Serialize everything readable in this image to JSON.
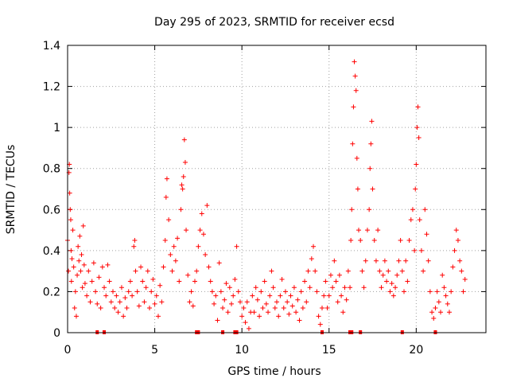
{
  "chart_data": {
    "type": "scatter",
    "title": "Day 295 of 2023, SRMTID for receiver ecsd",
    "xlabel": "GPS time / hours",
    "ylabel": "SRMTID / TECUs",
    "xlim": [
      0,
      24
    ],
    "ylim": [
      0,
      1.4
    ],
    "xticks": [
      0,
      5,
      10,
      15,
      20
    ],
    "yticks": [
      0,
      0.2,
      0.4,
      0.6,
      0.8,
      1,
      1.2,
      1.4
    ],
    "xtick_labels": [
      "0",
      "5",
      "10",
      "15",
      "20"
    ],
    "ytick_labels": [
      "0",
      "0.2",
      "0.4",
      "0.6",
      "0.8",
      "1",
      "1.2",
      "1.4"
    ],
    "grid": true,
    "marker": "plus",
    "series_color": "#ff0000",
    "baseline_markers_x": [
      1.7,
      2.1,
      7.4,
      7.5,
      8.9,
      9.6,
      9.7,
      14.6,
      16.2,
      16.3,
      16.8,
      19.2,
      21.1
    ],
    "series": [
      {
        "name": "SRMTID",
        "points": [
          [
            0.0,
            0.45
          ],
          [
            0.05,
            0.3
          ],
          [
            0.08,
            0.78
          ],
          [
            0.1,
            0.82
          ],
          [
            0.12,
            0.68
          ],
          [
            0.15,
            0.6
          ],
          [
            0.18,
            0.55
          ],
          [
            0.2,
            0.4
          ],
          [
            0.22,
            0.25
          ],
          [
            0.25,
            0.36
          ],
          [
            0.3,
            0.5
          ],
          [
            0.35,
            0.32
          ],
          [
            0.4,
            0.12
          ],
          [
            0.45,
            0.2
          ],
          [
            0.5,
            0.08
          ],
          [
            0.55,
            0.28
          ],
          [
            0.6,
            0.42
          ],
          [
            0.65,
            0.35
          ],
          [
            0.7,
            0.47
          ],
          [
            0.75,
            0.3
          ],
          [
            0.8,
            0.38
          ],
          [
            0.85,
            0.22
          ],
          [
            0.9,
            0.52
          ],
          [
            0.95,
            0.33
          ],
          [
            1.0,
            0.24
          ],
          [
            1.1,
            0.18
          ],
          [
            1.2,
            0.3
          ],
          [
            1.3,
            0.15
          ],
          [
            1.4,
            0.25
          ],
          [
            1.5,
            0.34
          ],
          [
            1.6,
            0.2
          ],
          [
            1.7,
            0.14
          ],
          [
            1.8,
            0.27
          ],
          [
            1.9,
            0.12
          ],
          [
            2.0,
            0.32
          ],
          [
            2.1,
            0.22
          ],
          [
            2.2,
            0.18
          ],
          [
            2.3,
            0.33
          ],
          [
            2.4,
            0.25
          ],
          [
            2.5,
            0.15
          ],
          [
            2.6,
            0.2
          ],
          [
            2.7,
            0.12
          ],
          [
            2.8,
            0.18
          ],
          [
            2.9,
            0.1
          ],
          [
            3.0,
            0.15
          ],
          [
            3.1,
            0.22
          ],
          [
            3.2,
            0.08
          ],
          [
            3.3,
            0.17
          ],
          [
            3.4,
            0.12
          ],
          [
            3.5,
            0.2
          ],
          [
            3.6,
            0.25
          ],
          [
            3.7,
            0.18
          ],
          [
            3.8,
            0.42
          ],
          [
            3.85,
            0.45
          ],
          [
            3.9,
            0.3
          ],
          [
            4.0,
            0.2
          ],
          [
            4.1,
            0.13
          ],
          [
            4.2,
            0.32
          ],
          [
            4.3,
            0.25
          ],
          [
            4.4,
            0.15
          ],
          [
            4.5,
            0.22
          ],
          [
            4.6,
            0.3
          ],
          [
            4.7,
            0.12
          ],
          [
            4.8,
            0.2
          ],
          [
            4.9,
            0.26
          ],
          [
            5.0,
            0.14
          ],
          [
            5.1,
            0.18
          ],
          [
            5.2,
            0.08
          ],
          [
            5.3,
            0.23
          ],
          [
            5.4,
            0.15
          ],
          [
            5.5,
            0.32
          ],
          [
            5.6,
            0.45
          ],
          [
            5.65,
            0.66
          ],
          [
            5.7,
            0.75
          ],
          [
            5.8,
            0.55
          ],
          [
            5.9,
            0.38
          ],
          [
            6.0,
            0.3
          ],
          [
            6.1,
            0.42
          ],
          [
            6.2,
            0.35
          ],
          [
            6.3,
            0.46
          ],
          [
            6.4,
            0.25
          ],
          [
            6.5,
            0.6
          ],
          [
            6.55,
            0.72
          ],
          [
            6.6,
            0.7
          ],
          [
            6.65,
            0.76
          ],
          [
            6.7,
            0.94
          ],
          [
            6.75,
            0.83
          ],
          [
            6.8,
            0.5
          ],
          [
            6.9,
            0.28
          ],
          [
            7.0,
            0.15
          ],
          [
            7.1,
            0.2
          ],
          [
            7.2,
            0.13
          ],
          [
            7.3,
            0.25
          ],
          [
            7.4,
            0.3
          ],
          [
            7.5,
            0.42
          ],
          [
            7.6,
            0.5
          ],
          [
            7.7,
            0.58
          ],
          [
            7.8,
            0.48
          ],
          [
            7.9,
            0.38
          ],
          [
            8.0,
            0.62
          ],
          [
            8.1,
            0.32
          ],
          [
            8.2,
            0.25
          ],
          [
            8.3,
            0.2
          ],
          [
            8.4,
            0.14
          ],
          [
            8.5,
            0.18
          ],
          [
            8.6,
            0.06
          ],
          [
            8.7,
            0.34
          ],
          [
            8.8,
            0.2
          ],
          [
            8.9,
            0.12
          ],
          [
            9.0,
            0.16
          ],
          [
            9.1,
            0.24
          ],
          [
            9.2,
            0.1
          ],
          [
            9.3,
            0.22
          ],
          [
            9.4,
            0.14
          ],
          [
            9.5,
            0.18
          ],
          [
            9.6,
            0.26
          ],
          [
            9.7,
            0.42
          ],
          [
            9.8,
            0.2
          ],
          [
            9.9,
            0.15
          ],
          [
            10.0,
            0.08
          ],
          [
            10.1,
            0.12
          ],
          [
            10.2,
            0.05
          ],
          [
            10.3,
            0.15
          ],
          [
            10.4,
            0.02
          ],
          [
            10.5,
            0.1
          ],
          [
            10.6,
            0.18
          ],
          [
            10.7,
            0.1
          ],
          [
            10.8,
            0.22
          ],
          [
            10.9,
            0.16
          ],
          [
            11.0,
            0.08
          ],
          [
            11.1,
            0.2
          ],
          [
            11.2,
            0.12
          ],
          [
            11.3,
            0.25
          ],
          [
            11.4,
            0.14
          ],
          [
            11.5,
            0.1
          ],
          [
            11.6,
            0.18
          ],
          [
            11.7,
            0.3
          ],
          [
            11.8,
            0.22
          ],
          [
            11.9,
            0.12
          ],
          [
            12.0,
            0.15
          ],
          [
            12.1,
            0.08
          ],
          [
            12.2,
            0.18
          ],
          [
            12.3,
            0.26
          ],
          [
            12.4,
            0.12
          ],
          [
            12.5,
            0.2
          ],
          [
            12.6,
            0.15
          ],
          [
            12.7,
            0.09
          ],
          [
            12.8,
            0.18
          ],
          [
            12.9,
            0.13
          ],
          [
            13.0,
            0.22
          ],
          [
            13.1,
            0.1
          ],
          [
            13.2,
            0.16
          ],
          [
            13.3,
            0.06
          ],
          [
            13.4,
            0.2
          ],
          [
            13.5,
            0.12
          ],
          [
            13.6,
            0.25
          ],
          [
            13.7,
            0.15
          ],
          [
            13.8,
            0.3
          ],
          [
            13.9,
            0.22
          ],
          [
            14.0,
            0.36
          ],
          [
            14.1,
            0.42
          ],
          [
            14.2,
            0.3
          ],
          [
            14.3,
            0.2
          ],
          [
            14.4,
            0.08
          ],
          [
            14.5,
            0.04
          ],
          [
            14.6,
            0.12
          ],
          [
            14.7,
            0.18
          ],
          [
            14.8,
            0.25
          ],
          [
            14.9,
            0.12
          ],
          [
            15.0,
            0.18
          ],
          [
            15.1,
            0.28
          ],
          [
            15.2,
            0.22
          ],
          [
            15.3,
            0.35
          ],
          [
            15.4,
            0.25
          ],
          [
            15.5,
            0.15
          ],
          [
            15.6,
            0.28
          ],
          [
            15.7,
            0.18
          ],
          [
            15.8,
            0.1
          ],
          [
            15.9,
            0.22
          ],
          [
            16.0,
            0.16
          ],
          [
            16.1,
            0.3
          ],
          [
            16.2,
            0.22
          ],
          [
            16.25,
            0.45
          ],
          [
            16.3,
            0.6
          ],
          [
            16.35,
            0.92
          ],
          [
            16.4,
            1.1
          ],
          [
            16.45,
            1.32
          ],
          [
            16.5,
            1.25
          ],
          [
            16.55,
            1.18
          ],
          [
            16.6,
            0.85
          ],
          [
            16.65,
            0.7
          ],
          [
            16.7,
            0.5
          ],
          [
            16.8,
            0.45
          ],
          [
            16.9,
            0.3
          ],
          [
            17.0,
            0.22
          ],
          [
            17.1,
            0.35
          ],
          [
            17.2,
            0.5
          ],
          [
            17.3,
            0.6
          ],
          [
            17.35,
            0.8
          ],
          [
            17.4,
            0.92
          ],
          [
            17.45,
            1.03
          ],
          [
            17.5,
            0.7
          ],
          [
            17.6,
            0.45
          ],
          [
            17.7,
            0.35
          ],
          [
            17.8,
            0.5
          ],
          [
            17.9,
            0.3
          ],
          [
            18.0,
            0.22
          ],
          [
            18.1,
            0.28
          ],
          [
            18.2,
            0.35
          ],
          [
            18.3,
            0.25
          ],
          [
            18.4,
            0.3
          ],
          [
            18.5,
            0.2
          ],
          [
            18.6,
            0.24
          ],
          [
            18.7,
            0.18
          ],
          [
            18.8,
            0.22
          ],
          [
            18.9,
            0.28
          ],
          [
            19.0,
            0.35
          ],
          [
            19.1,
            0.45
          ],
          [
            19.2,
            0.3
          ],
          [
            19.3,
            0.2
          ],
          [
            19.4,
            0.35
          ],
          [
            19.5,
            0.25
          ],
          [
            19.6,
            0.45
          ],
          [
            19.7,
            0.55
          ],
          [
            19.8,
            0.6
          ],
          [
            19.9,
            0.4
          ],
          [
            19.95,
            0.7
          ],
          [
            20.0,
            0.82
          ],
          [
            20.05,
            1.0
          ],
          [
            20.1,
            1.1
          ],
          [
            20.15,
            0.95
          ],
          [
            20.2,
            0.55
          ],
          [
            20.3,
            0.4
          ],
          [
            20.4,
            0.3
          ],
          [
            20.5,
            0.6
          ],
          [
            20.6,
            0.48
          ],
          [
            20.7,
            0.35
          ],
          [
            20.8,
            0.2
          ],
          [
            20.9,
            0.1
          ],
          [
            21.0,
            0.07
          ],
          [
            21.1,
            0.12
          ],
          [
            21.2,
            0.2
          ],
          [
            21.3,
            0.15
          ],
          [
            21.4,
            0.1
          ],
          [
            21.5,
            0.28
          ],
          [
            21.6,
            0.22
          ],
          [
            21.7,
            0.18
          ],
          [
            21.8,
            0.14
          ],
          [
            21.9,
            0.1
          ],
          [
            22.0,
            0.2
          ],
          [
            22.1,
            0.32
          ],
          [
            22.2,
            0.4
          ],
          [
            22.3,
            0.5
          ],
          [
            22.4,
            0.45
          ],
          [
            22.5,
            0.35
          ],
          [
            22.6,
            0.3
          ],
          [
            22.7,
            0.2
          ],
          [
            22.8,
            0.26
          ]
        ]
      }
    ]
  }
}
